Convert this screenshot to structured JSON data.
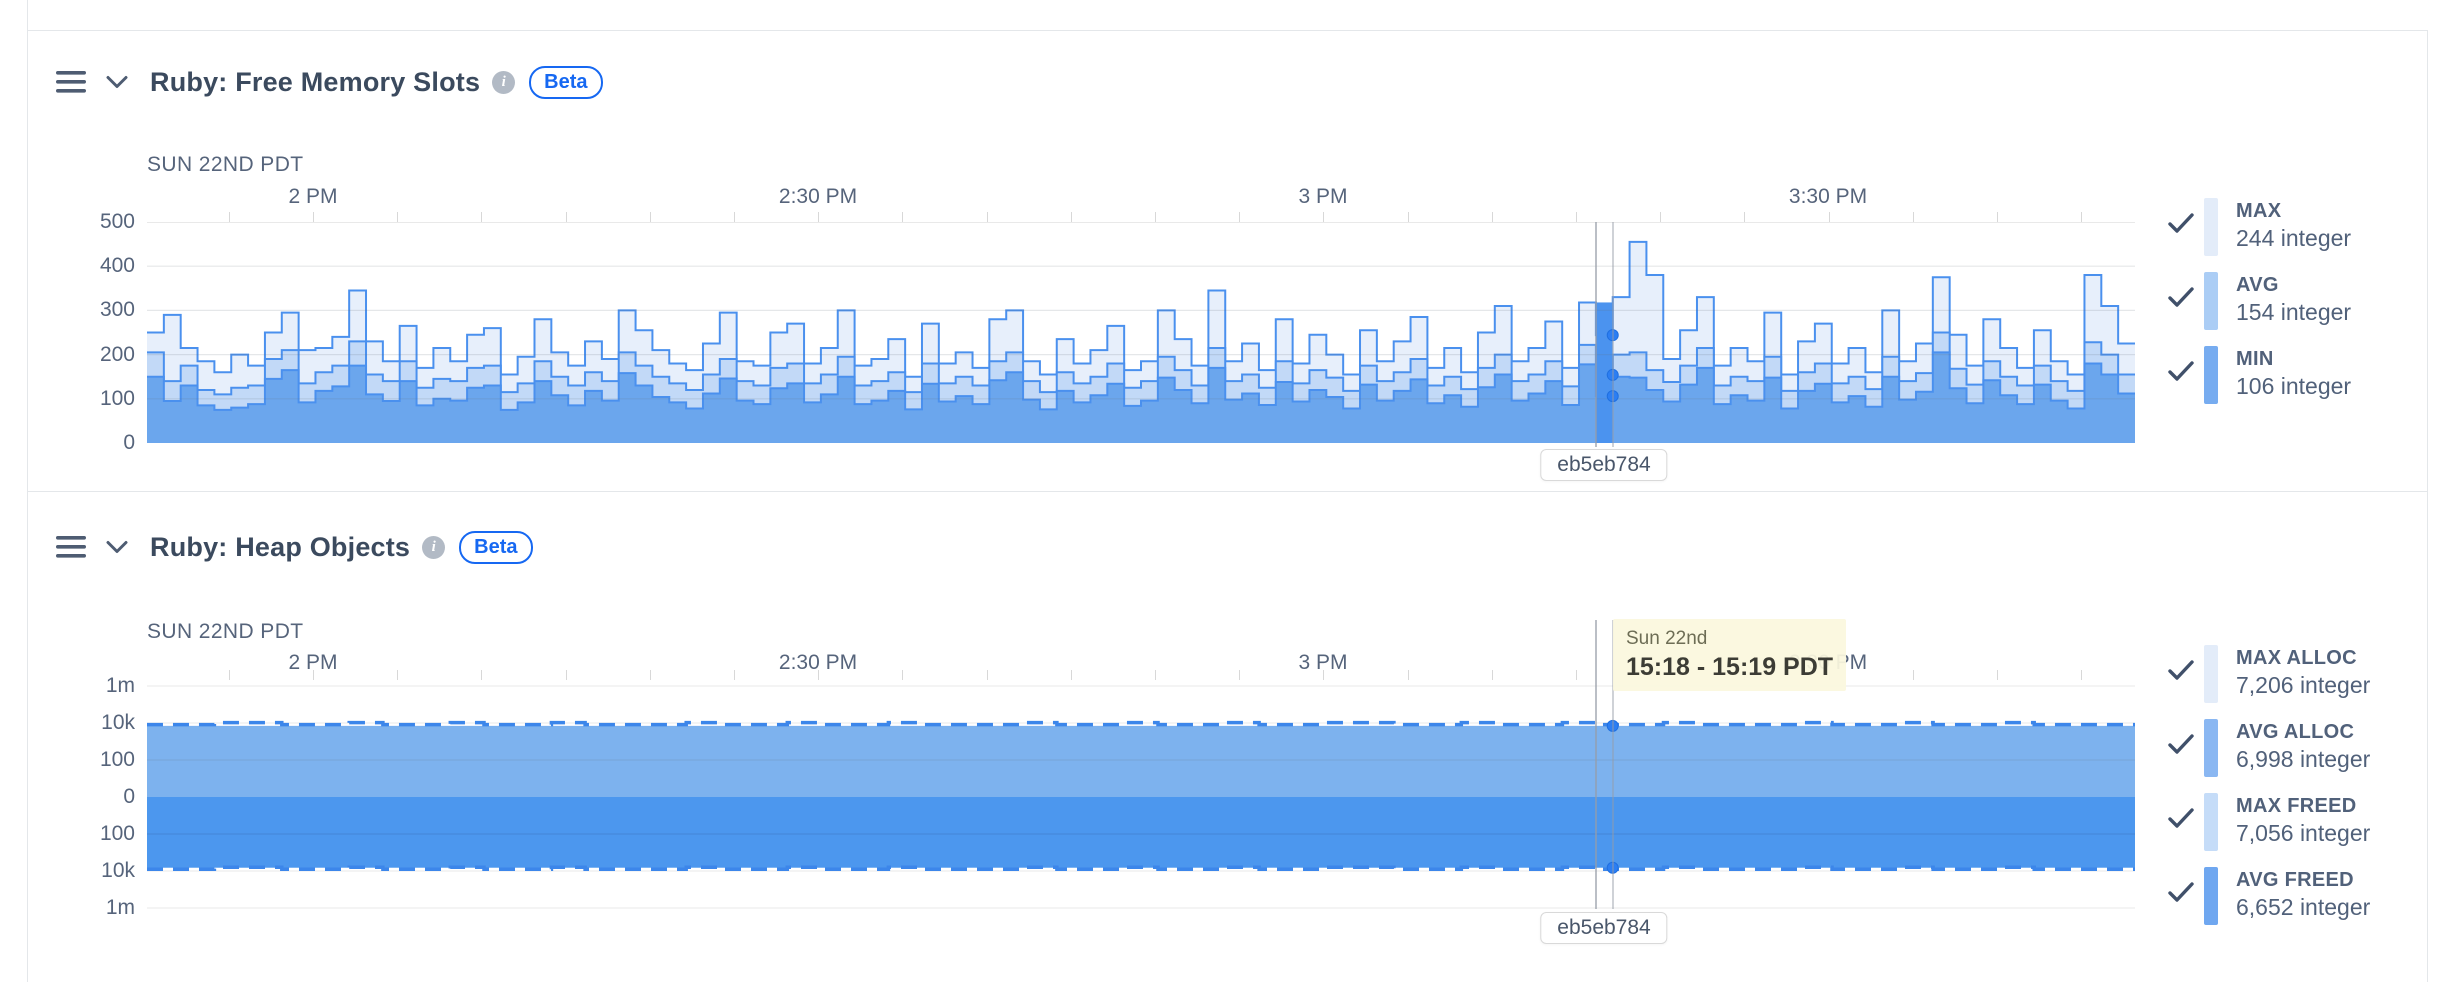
{
  "panels": [
    {
      "title": "Ruby: Free Memory Slots",
      "badge": "Beta",
      "date_label": "SUN 22ND PDT",
      "x_labels": [
        "2 PM",
        "2:30 PM",
        "3 PM",
        "3:30 PM"
      ],
      "y_labels": [
        "500",
        "400",
        "300",
        "200",
        "100",
        "0"
      ],
      "hover_tag": "eb5eb784",
      "legend": [
        {
          "label": "MAX",
          "value": "244 integer",
          "swatch": "#e3ecf9"
        },
        {
          "label": "AVG",
          "value": "154 integer",
          "swatch": "#abcdf5"
        },
        {
          "label": "MIN",
          "value": "106 integer",
          "swatch": "#77acf0"
        }
      ]
    },
    {
      "title": "Ruby: Heap Objects",
      "badge": "Beta",
      "date_label": "SUN 22ND PDT",
      "x_labels": [
        "2 PM",
        "2:30 PM",
        "3 PM",
        "3:30 PM"
      ],
      "y_labels": [
        "1m",
        "10k",
        "100",
        "0",
        "100",
        "10k",
        "1m"
      ],
      "hover_tag": "eb5eb784",
      "hover_tooltip": {
        "date": "Sun 22nd",
        "time": "15:18 - 15:19 PDT"
      },
      "legend": [
        {
          "label": "MAX ALLOC",
          "value": "7,206 integer",
          "swatch": "#e3ecf9"
        },
        {
          "label": "AVG ALLOC",
          "value": "6,998 integer",
          "swatch": "#8ab7f2"
        },
        {
          "label": "MAX FREED",
          "value": "7,056 integer",
          "swatch": "#c5dcf8"
        },
        {
          "label": "AVG FREED",
          "value": "6,652 integer",
          "swatch": "#6fa7f0"
        }
      ]
    }
  ],
  "colors": {
    "step_stroke": "#4a90ee",
    "fill_max": "#e7effb",
    "fill_avg": "#c2d9f7",
    "fill_min": "#6ba6ed",
    "hover_fill": "#4b93ef",
    "dot": "#2c7ef2",
    "band_upper": "#7db2ee",
    "band_lower": "#4c97ee",
    "band_dash": "#3c86ea",
    "gridline": "#e9e9e9",
    "grid_overlay": "rgba(100,110,125,0.17)"
  },
  "chart_data": [
    {
      "type": "area-step",
      "title": "Ruby: Free Memory Slots",
      "unit": "integer",
      "x_tick_labels": [
        "2 PM",
        "2:30 PM",
        "3 PM",
        "3:30 PM"
      ],
      "x_minor_tick_interval_min": 5,
      "x_step_minutes": 1,
      "x_window_approx": "1:50 PM - 3:48 PM PDT, Sun 22nd",
      "ylim": [
        0,
        500
      ],
      "y_tick_labels": [
        500,
        400,
        300,
        200,
        100,
        0
      ],
      "grid": "horizontal",
      "legend_position": "right",
      "series": [
        {
          "name": "MAX",
          "values": [
            250,
            290,
            215,
            185,
            160,
            200,
            175,
            250,
            295,
            210,
            215,
            240,
            345,
            230,
            185,
            265,
            170,
            215,
            185,
            245,
            260,
            155,
            195,
            280,
            205,
            175,
            230,
            190,
            300,
            255,
            210,
            180,
            165,
            225,
            295,
            185,
            175,
            250,
            270,
            180,
            215,
            300,
            175,
            190,
            235,
            150,
            270,
            180,
            205,
            170,
            280,
            300,
            185,
            155,
            235,
            180,
            210,
            265,
            165,
            185,
            300,
            235,
            175,
            345,
            185,
            225,
            165,
            280,
            180,
            245,
            200,
            155,
            255,
            185,
            230,
            285,
            170,
            215,
            160,
            250,
            310,
            185,
            215,
            275,
            170,
            318,
            244,
            330,
            455,
            380,
            190,
            255,
            330,
            175,
            215,
            185,
            295,
            155,
            230,
            270,
            180,
            215,
            160,
            300,
            185,
            225,
            375,
            245,
            175,
            280,
            215,
            170,
            255,
            185,
            155,
            380,
            310,
            225
          ]
        },
        {
          "name": "AVG",
          "values": [
            205,
            140,
            175,
            120,
            110,
            125,
            130,
            190,
            210,
            135,
            160,
            175,
            230,
            155,
            140,
            185,
            125,
            145,
            140,
            170,
            175,
            115,
            135,
            185,
            150,
            130,
            160,
            140,
            205,
            175,
            150,
            135,
            120,
            155,
            190,
            140,
            130,
            170,
            180,
            135,
            155,
            195,
            130,
            140,
            160,
            115,
            180,
            135,
            150,
            130,
            185,
            205,
            140,
            115,
            160,
            135,
            150,
            180,
            125,
            140,
            195,
            165,
            130,
            215,
            140,
            155,
            125,
            185,
            135,
            165,
            148,
            118,
            175,
            140,
            160,
            190,
            130,
            150,
            122,
            170,
            200,
            140,
            155,
            185,
            128,
            222,
            154,
            200,
            205,
            165,
            138,
            175,
            215,
            130,
            150,
            140,
            195,
            118,
            160,
            180,
            135,
            150,
            122,
            195,
            140,
            158,
            250,
            168,
            132,
            185,
            150,
            130,
            175,
            140,
            118,
            228,
            200,
            155
          ]
        },
        {
          "name": "MIN",
          "values": [
            150,
            95,
            130,
            85,
            75,
            80,
            88,
            145,
            165,
            92,
            118,
            128,
            175,
            110,
            95,
            140,
            85,
            100,
            96,
            125,
            130,
            75,
            92,
            140,
            108,
            85,
            118,
            96,
            158,
            130,
            104,
            92,
            78,
            112,
            146,
            96,
            88,
            124,
            135,
            92,
            110,
            150,
            88,
            96,
            118,
            76,
            134,
            94,
            106,
            88,
            142,
            160,
            98,
            76,
            118,
            92,
            108,
            134,
            84,
            96,
            148,
            120,
            90,
            170,
            98,
            112,
            86,
            138,
            94,
            120,
            104,
            78,
            132,
            96,
            118,
            144,
            90,
            108,
            82,
            126,
            155,
            96,
            112,
            140,
            86,
            178,
            106,
            150,
            148,
            120,
            94,
            132,
            170,
            88,
            108,
            96,
            148,
            78,
            118,
            134,
            92,
            106,
            82,
            150,
            98,
            116,
            205,
            124,
            90,
            142,
            108,
            88,
            132,
            96,
            78,
            180,
            155,
            112
          ]
        }
      ],
      "hover": {
        "index": 86,
        "values": {
          "MAX": 244,
          "AVG": 154,
          "MIN": 106
        },
        "highlight_top": 318,
        "release_tag": "eb5eb784"
      }
    },
    {
      "type": "area-band-symlog",
      "title": "Ruby: Heap Objects",
      "unit": "integer",
      "x_tick_labels": [
        "2 PM",
        "2:30 PM",
        "3 PM",
        "3:30 PM"
      ],
      "x_minor_tick_interval_min": 5,
      "y_tick_labels": [
        "1m",
        "10k",
        "100",
        "0",
        "100",
        "10k",
        "1m"
      ],
      "y_scale": "symmetric log; allocations plotted above 0, freed objects mirrored below 0",
      "series": [
        {
          "name": "MAX ALLOC",
          "approx_constant_value": 7206,
          "style": "dashed-top-edge"
        },
        {
          "name": "AVG ALLOC",
          "approx_constant_value": 6998,
          "style": "upper-band-fill"
        },
        {
          "name": "MAX FREED",
          "approx_constant_value": 7056,
          "style": "dashed-bottom-edge"
        },
        {
          "name": "AVG FREED",
          "approx_constant_value": 6652,
          "style": "lower-band-fill"
        }
      ],
      "hover": {
        "date": "Sun 22nd",
        "time_range": "15:18 - 15:19 PDT",
        "values": {
          "MAX ALLOC": 7206,
          "AVG ALLOC": 6998,
          "MAX FREED": 7056,
          "AVG FREED": 6652
        },
        "release_tag": "eb5eb784"
      }
    }
  ]
}
